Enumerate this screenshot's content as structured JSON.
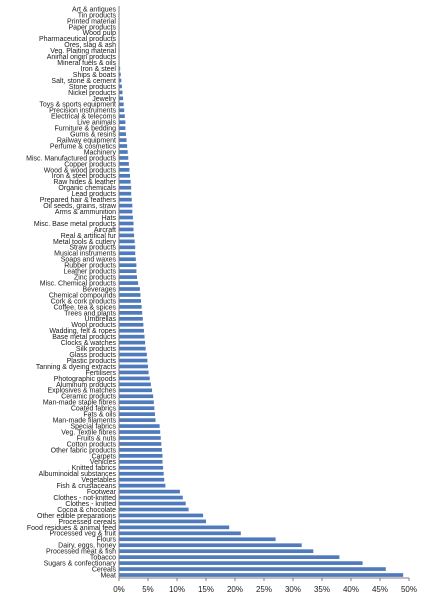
{
  "chart_data": {
    "type": "bar",
    "orientation": "horizontal",
    "title": "",
    "xlabel": "",
    "ylabel": "",
    "xlim": [
      0,
      50
    ],
    "x_ticks": [
      "0%",
      "5%",
      "10%",
      "15%",
      "20%",
      "25%",
      "30%",
      "35%",
      "40%",
      "45%",
      "50%"
    ],
    "grid": false,
    "bar_color": "#4f7bbd",
    "categories": [
      "Art & antiques",
      "Tin products",
      "Printed material",
      "Paper products",
      "Wood pulp",
      "Pharmaceutical products",
      "Ores, slag & ash",
      "Veg. Plaiting material",
      "Animal origin products",
      "Mineral fuels & oils",
      "Iron & steel",
      "Ships & boats",
      "Salt, stone & cement",
      "Stone products",
      "Nickel products",
      "Jewelry",
      "Toys & sports equipment",
      "Precision instruments",
      "Electrical & telecoms",
      "Live animals",
      "Furniture & bedding",
      "Gums & resins",
      "Railway equipment",
      "Perfume & cosmetics",
      "Machinery",
      "Misc. Manufactured products",
      "Copper products",
      "Wood & wood products",
      "Iron & steel products",
      "Raw hides & leather",
      "Organic chemicals",
      "Lead products",
      "Prepared hair & feathers",
      "Oil seeds, grains, straw",
      "Arms & ammunition",
      "Hats",
      "Misc. Base metal products",
      "Aircraft",
      "Real & artifical fur",
      "Metal tools & cutlery",
      "Straw products",
      "Musical instruments",
      "Soaps and waxes",
      "Rubber products",
      "Leather products",
      "Zinc products",
      "Misc. Chemical products",
      "Beverages",
      "Chemical compounds",
      "Cork & cork products",
      "Coffee, tea & spices",
      "Trees and plants",
      "Umbrellas",
      "Wool products",
      "Wadding, felt & ropes",
      "Base metal products",
      "Clocks & watches",
      "Silk products",
      "Glass products",
      "Plastic products",
      "Tanning & dyeing extracts",
      "Fertilisers",
      "Photographic goods",
      "Aluminum products",
      "Explosives & matches",
      "Ceramic products",
      "Man-made staple fibres",
      "Coated fabrics",
      "Fats & oils",
      "Man-made filaments",
      "Special fabrics",
      "Veg. Textile fibres",
      "Fruits & nuts",
      "Cotton products",
      "Other fabric products",
      "Carpets",
      "Vehicles",
      "Knitted fabrics",
      "Albuminoidal substances",
      "Vegetables",
      "Fish & crustaceans",
      "Footwear",
      "Clothes - not-knitted",
      "Clothes - knitted",
      "Cocoa & chocolate",
      "Other edible preparations",
      "Processed cereals",
      "Food residues & animal feed",
      "Processed veg & fruit",
      "Flours",
      "Dairy, eggs, honey",
      "Processed meat & fish",
      "Tobacco",
      "Sugars & confectionary",
      "Cereals",
      "Meat"
    ],
    "values": [
      0.0,
      0.0,
      0.0,
      0.0,
      0.0,
      0.0,
      0.0,
      0.1,
      0.1,
      0.1,
      0.2,
      0.3,
      0.4,
      0.5,
      0.6,
      0.7,
      0.8,
      0.9,
      1.0,
      1.1,
      1.1,
      1.2,
      1.3,
      1.4,
      1.5,
      1.6,
      1.7,
      1.8,
      1.9,
      2.0,
      2.1,
      2.1,
      2.2,
      2.3,
      2.3,
      2.4,
      2.5,
      2.5,
      2.6,
      2.7,
      2.8,
      2.8,
      2.9,
      3.0,
      3.0,
      3.1,
      3.3,
      3.6,
      3.7,
      3.8,
      3.9,
      4.0,
      4.1,
      4.2,
      4.3,
      4.4,
      4.5,
      4.6,
      4.8,
      4.9,
      5.0,
      5.1,
      5.3,
      5.5,
      5.7,
      5.9,
      6.0,
      6.1,
      6.2,
      6.3,
      7.0,
      7.1,
      7.2,
      7.3,
      7.4,
      7.5,
      7.5,
      7.6,
      7.7,
      7.8,
      8.0,
      10.5,
      11.0,
      11.5,
      12.0,
      14.5,
      15.0,
      19.0,
      21.0,
      27.0,
      31.5,
      33.5,
      38.0,
      42.0,
      46.0,
      49.0
    ]
  }
}
